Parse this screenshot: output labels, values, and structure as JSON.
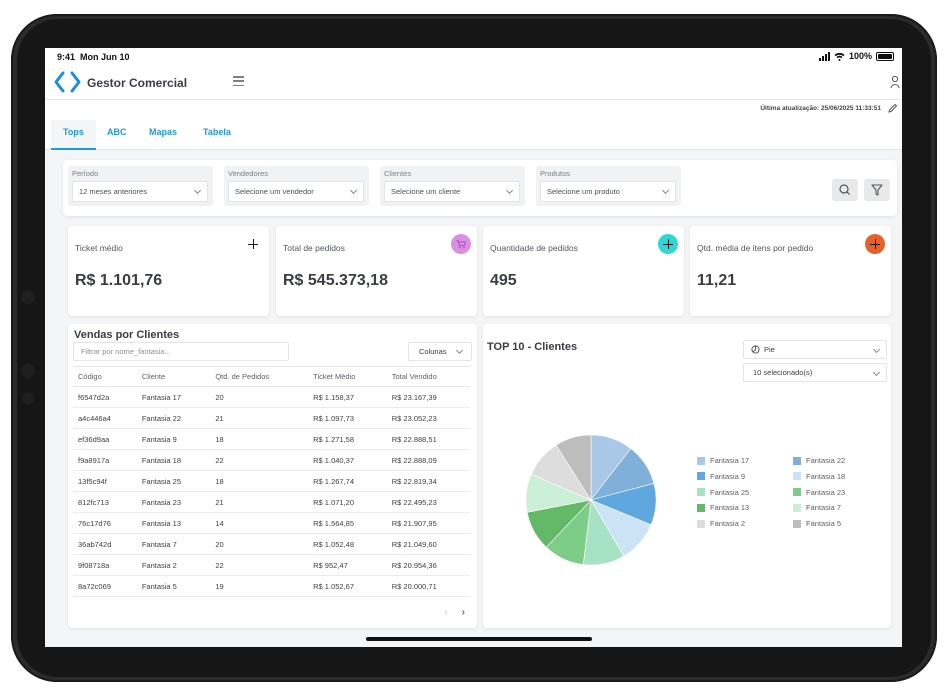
{
  "status": {
    "time": "9:41",
    "date": "Mon Jun 10",
    "battery": "100%"
  },
  "app": {
    "title": "Gestor Comercial",
    "last_update": "Última atualização: 25/06/2025 11:33:51"
  },
  "tabs": [
    {
      "label": "Tops",
      "active": true
    },
    {
      "label": "ABC",
      "active": false
    },
    {
      "label": "Mapas",
      "active": false
    },
    {
      "label": "Tabela",
      "active": false
    }
  ],
  "filters": [
    {
      "label": "Período",
      "value": "12 meses anteriores"
    },
    {
      "label": "Vendedores",
      "value": "Selecione um vendedor"
    },
    {
      "label": "Clientes",
      "value": "Selecione um cliente"
    },
    {
      "label": "Produtos",
      "value": "Selecione um produto"
    }
  ],
  "kpis": [
    {
      "label": "Ticket médio",
      "value": "R$ 1.101,76",
      "icon": "plus-icon",
      "color": ""
    },
    {
      "label": "Total de pedidos",
      "value": "R$ 545.373,18",
      "icon": "cart-icon",
      "color": "#dc8fe0"
    },
    {
      "label": "Quantidade de pedidos",
      "value": "495",
      "icon": "plus-icon",
      "color": "#2ed6d6"
    },
    {
      "label": "Qtd. média de itens por pedido",
      "value": "11,21",
      "icon": "plus-icon",
      "color": "#e8602a"
    }
  ],
  "sales": {
    "title": "Vendas por Clientes",
    "filter_placeholder": "Filtrar por nome_fantasia...",
    "columns_label": "Colunas",
    "headers": [
      "Código",
      "Cliente",
      "Qtd. de Pedidos",
      "Ticket Médio",
      "Total Vendido"
    ],
    "rows": [
      [
        "f6547d2a",
        "Fantasia 17",
        "20",
        "R$ 1.158,37",
        "R$ 23.167,39"
      ],
      [
        "a4c446a4",
        "Fantasia 22",
        "21",
        "R$ 1.097,73",
        "R$ 23.052,23"
      ],
      [
        "ef36d9aa",
        "Fantasia 9",
        "18",
        "R$ 1.271,58",
        "R$ 22.888,51"
      ],
      [
        "f9a8917a",
        "Fantasia 18",
        "22",
        "R$ 1.040,37",
        "R$ 22.888,09"
      ],
      [
        "13f5c94f",
        "Fantasia 25",
        "18",
        "R$ 1.267,74",
        "R$ 22.819,34"
      ],
      [
        "812fc713",
        "Fantasia 23",
        "21",
        "R$ 1.071,20",
        "R$ 22.495,23"
      ],
      [
        "76c17d76",
        "Fantasia 13",
        "14",
        "R$ 1.564,85",
        "R$ 21.907,95"
      ],
      [
        "36ab742d",
        "Fantasia 7",
        "20",
        "R$ 1.052,48",
        "R$ 21.049,60"
      ],
      [
        "9f08718a",
        "Fantasia 2",
        "22",
        "R$ 952,47",
        "R$ 20.954,36"
      ],
      [
        "8a72c069",
        "Fantasia 5",
        "19",
        "R$ 1.052,67",
        "R$ 20.000,71"
      ]
    ]
  },
  "top10": {
    "title": "TOP 10 - Clientes",
    "chart_type_label": "Pie",
    "selection_label": "10 selecionado(s)"
  },
  "chart_data": {
    "type": "pie",
    "categories": [
      "Fantasia 17",
      "Fantasia 22",
      "Fantasia 9",
      "Fantasia 18",
      "Fantasia 25",
      "Fantasia 23",
      "Fantasia 13",
      "Fantasia 7",
      "Fantasia 2",
      "Fantasia 5"
    ],
    "values": [
      23167.39,
      23052.23,
      22888.51,
      22888.09,
      22819.34,
      22495.23,
      21907.95,
      21049.6,
      20954.36,
      20000.71
    ],
    "colors": [
      "#a9c8e8",
      "#7fb0d9",
      "#5fa8df",
      "#cce3f5",
      "#a8e2c4",
      "#7dcc88",
      "#63b968",
      "#ccefd8",
      "#dddddd",
      "#bdbdbd"
    ],
    "legend": "right"
  }
}
